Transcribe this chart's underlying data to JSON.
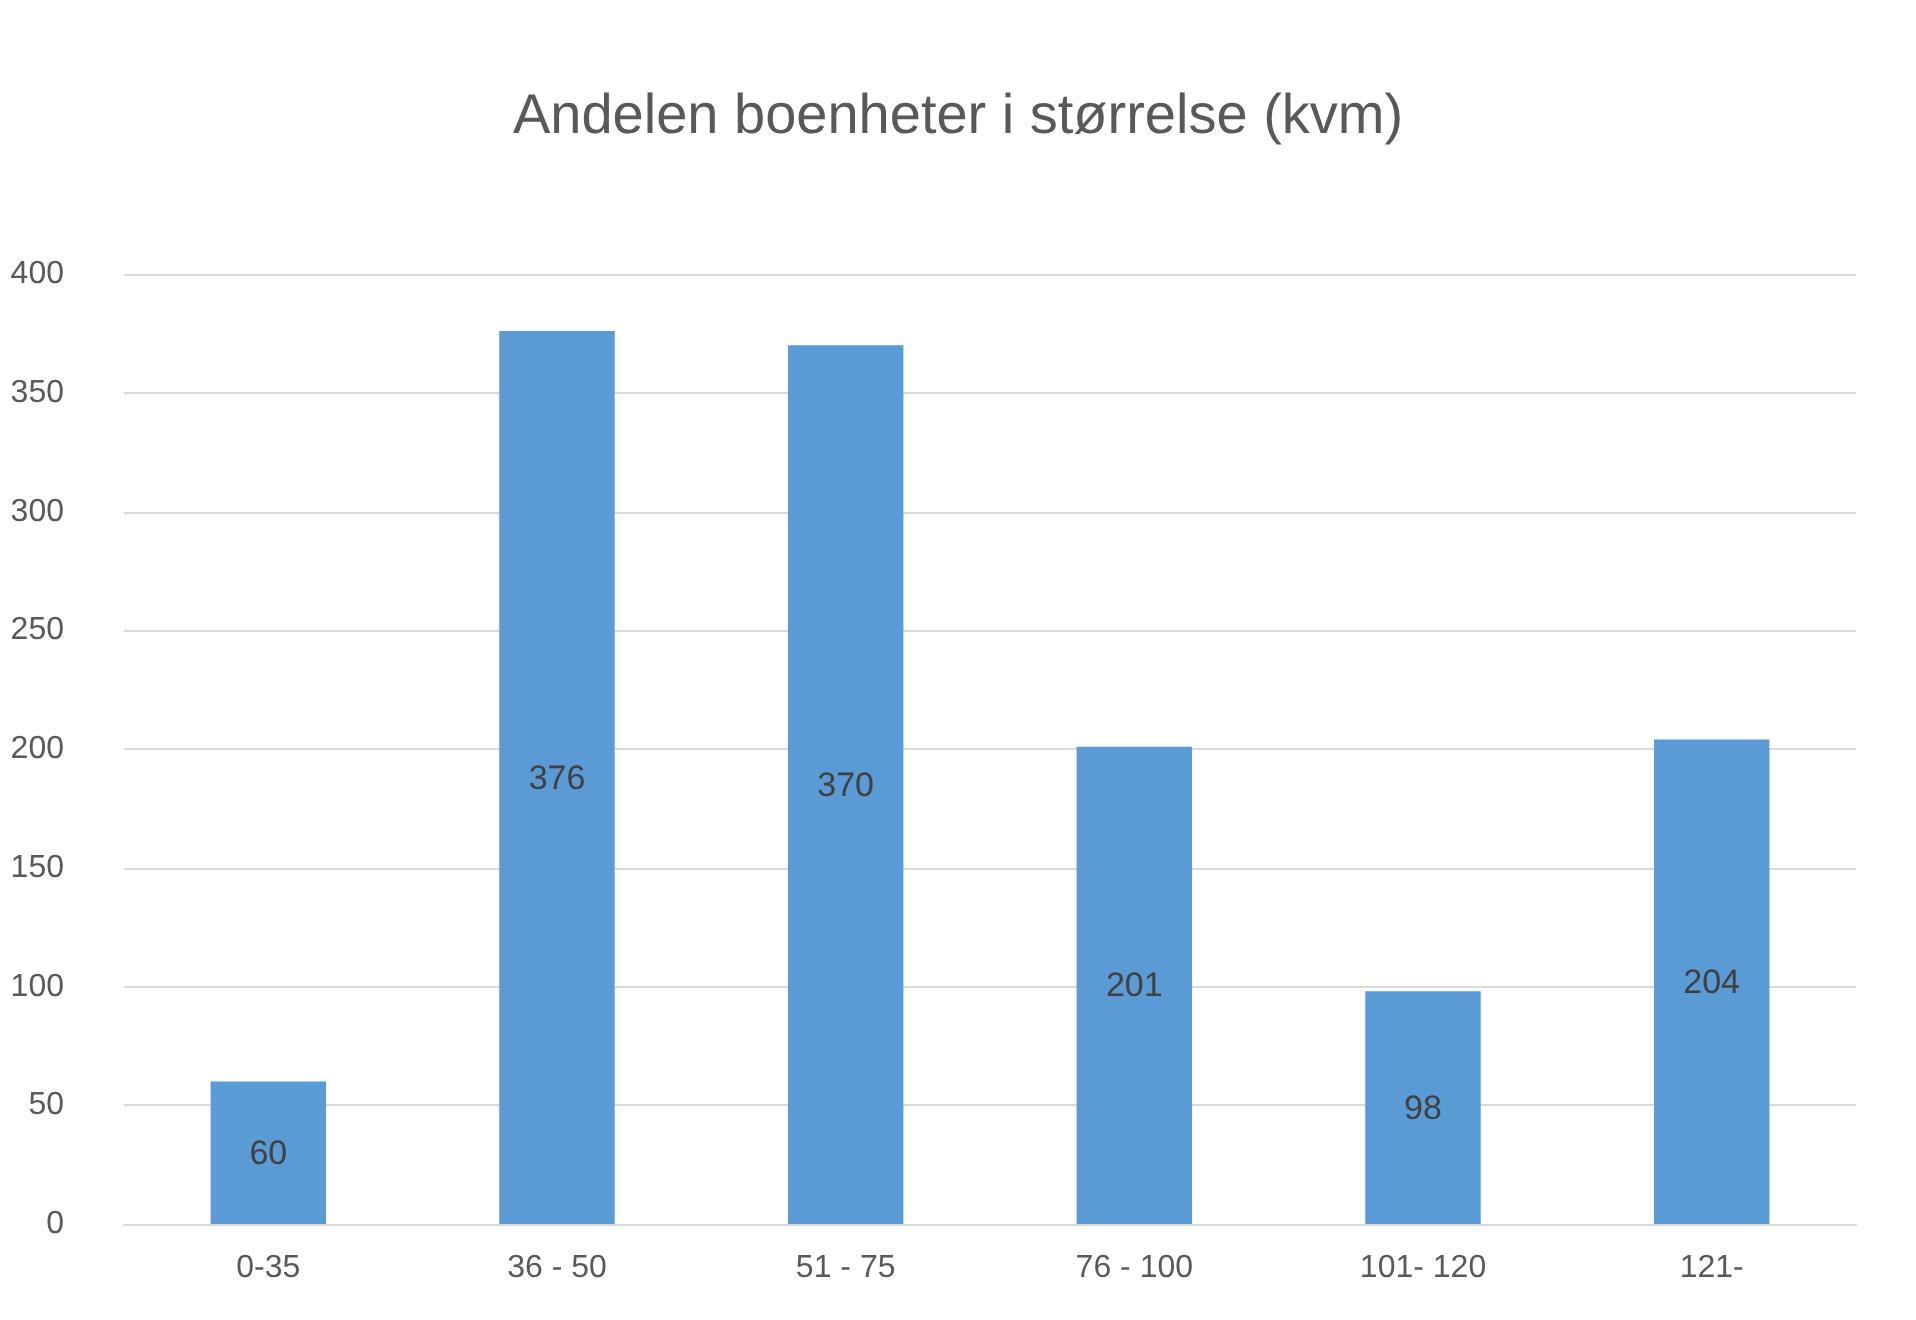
{
  "chart_data": {
    "type": "bar",
    "title": "Andelen boenheter i størrelse (kvm)",
    "categories": [
      "0-35",
      "36 - 50",
      "51 - 75",
      "76 - 100",
      "101- 120",
      "121-"
    ],
    "values": [
      60,
      376,
      370,
      201,
      98,
      204
    ],
    "color": "#5b9bd5",
    "ylim": [
      0,
      400
    ],
    "yticks": [
      0,
      50,
      100,
      150,
      200,
      250,
      300,
      350,
      400
    ],
    "grid": "y",
    "data_labels": true
  }
}
